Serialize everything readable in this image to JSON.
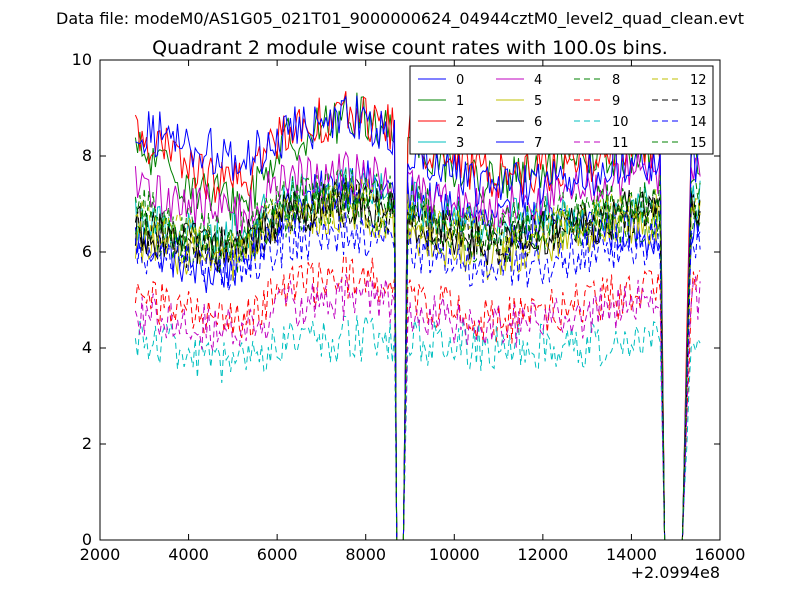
{
  "header": {
    "data_file_line": "Data file: modeM0/AS1G05_021T01_9000000624_04944cztM0_level2_quad_clean.evt"
  },
  "chart_data": {
    "type": "line",
    "title": "Quadrant 2 module wise count rates with 100.0s bins.",
    "xlabel": "",
    "ylabel": "",
    "x_offset_label": "+2.0994e8",
    "xlim": [
      2000,
      16000
    ],
    "ylim": [
      0,
      10
    ],
    "x_ticks": [
      2000,
      4000,
      6000,
      8000,
      10000,
      12000,
      14000,
      16000
    ],
    "x_tick_labels": [
      "2000",
      "4000",
      "6000",
      "8000",
      "10000",
      "12000",
      "14000",
      "16000"
    ],
    "y_ticks": [
      0,
      2,
      4,
      6,
      8,
      10
    ],
    "y_tick_labels": [
      "0",
      "2",
      "4",
      "6",
      "8",
      "10"
    ],
    "grid": false,
    "legend": {
      "placement": "top-right",
      "columns": 4
    },
    "time_range": {
      "start": 2800,
      "end": 15550,
      "bin": 100
    },
    "gaps": [
      {
        "t_drop_start": 8650,
        "t_zero_start": 8700,
        "t_zero_end": 8850,
        "t_rise_end": 8950
      },
      {
        "t_drop_start": 14650,
        "t_zero_start": 14750,
        "t_zero_end": 15150,
        "t_rise_end": 15350
      }
    ],
    "series": [
      {
        "name": "0",
        "color": "#0000ff",
        "dash": "solid",
        "level": 6.0,
        "profile": [
          6.3,
          5.5,
          5.8,
          6.9,
          7.5,
          6.6,
          6.6,
          6.4
        ]
      },
      {
        "name": "1",
        "color": "#008000",
        "dash": "solid",
        "level": 7.4,
        "profile": [
          8.1,
          7.2,
          7.0,
          8.3,
          8.9,
          7.4,
          7.8,
          8.1
        ]
      },
      {
        "name": "2",
        "color": "#ff0000",
        "dash": "solid",
        "level": 7.6,
        "profile": [
          8.5,
          7.5,
          7.4,
          8.6,
          8.9,
          7.6,
          7.8,
          8.2
        ]
      },
      {
        "name": "3",
        "color": "#00bfbf",
        "dash": "solid",
        "level": 6.6,
        "profile": [
          6.7,
          6.3,
          6.4,
          7.1,
          7.3,
          6.6,
          6.8,
          7.0
        ]
      },
      {
        "name": "4",
        "color": "#bf00bf",
        "dash": "solid",
        "level": 7.0,
        "profile": [
          7.3,
          6.9,
          6.8,
          7.5,
          7.6,
          6.9,
          7.2,
          7.6
        ]
      },
      {
        "name": "5",
        "color": "#bfbf00",
        "dash": "solid",
        "level": 6.0,
        "profile": [
          6.3,
          5.8,
          5.9,
          6.7,
          6.9,
          5.8,
          6.4,
          6.6
        ]
      },
      {
        "name": "6",
        "color": "#000000",
        "dash": "solid",
        "level": 6.2,
        "profile": [
          6.5,
          6.0,
          6.1,
          6.9,
          7.0,
          6.2,
          6.5,
          6.9
        ]
      },
      {
        "name": "7",
        "color": "#0000ff",
        "dash": "solid",
        "level": 7.7,
        "profile": [
          8.6,
          8.1,
          7.8,
          8.5,
          8.8,
          7.3,
          7.5,
          7.9
        ]
      },
      {
        "name": "8",
        "color": "#008000",
        "dash": "dashed",
        "level": 6.3,
        "profile": [
          6.6,
          6.0,
          6.0,
          6.8,
          7.0,
          6.2,
          6.5,
          6.7
        ]
      },
      {
        "name": "9",
        "color": "#ff0000",
        "dash": "dashed",
        "level": 4.9,
        "profile": [
          5.1,
          4.6,
          4.6,
          5.2,
          5.5,
          4.5,
          4.8,
          5.2
        ]
      },
      {
        "name": "10",
        "color": "#00bfbf",
        "dash": "dashed",
        "level": 4.0,
        "profile": [
          4.3,
          3.7,
          3.7,
          4.1,
          4.2,
          4.0,
          4.0,
          4.2
        ]
      },
      {
        "name": "11",
        "color": "#bf00bf",
        "dash": "dashed",
        "level": 4.6,
        "profile": [
          4.8,
          4.4,
          4.3,
          4.9,
          5.1,
          4.4,
          4.6,
          5.0
        ]
      },
      {
        "name": "12",
        "color": "#bfbf00",
        "dash": "dashed",
        "level": 6.4,
        "profile": [
          6.7,
          6.1,
          6.1,
          6.8,
          7.1,
          6.3,
          6.5,
          6.9
        ]
      },
      {
        "name": "13",
        "color": "#000000",
        "dash": "dashed",
        "level": 6.3,
        "profile": [
          6.5,
          6.0,
          6.1,
          6.8,
          7.0,
          6.1,
          6.4,
          6.8
        ]
      },
      {
        "name": "14",
        "color": "#0000ff",
        "dash": "dashed",
        "level": 5.8,
        "profile": [
          6.1,
          5.6,
          5.7,
          6.2,
          6.4,
          5.6,
          5.9,
          6.2
        ]
      },
      {
        "name": "15",
        "color": "#008000",
        "dash": "dashed",
        "level": 6.6,
        "profile": [
          6.9,
          6.3,
          6.4,
          7.1,
          7.3,
          6.5,
          6.8,
          7.1
        ]
      }
    ]
  }
}
